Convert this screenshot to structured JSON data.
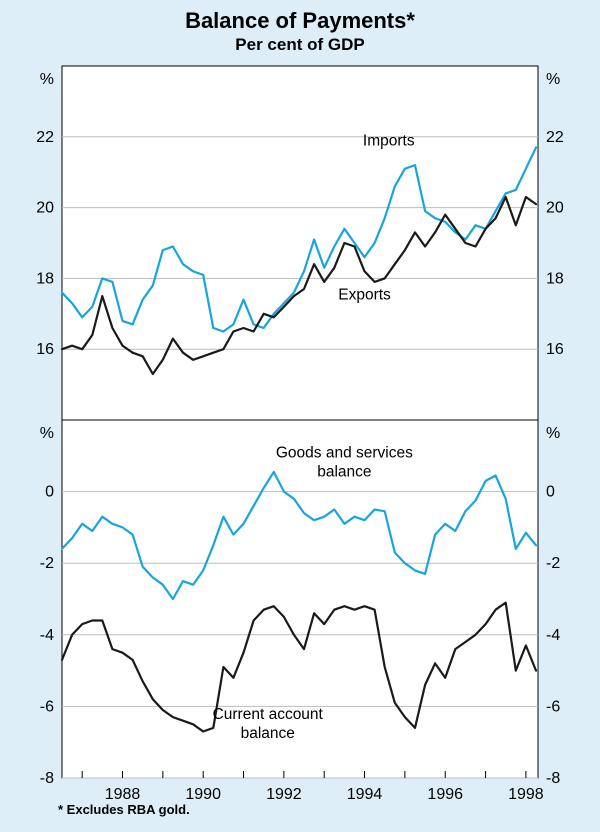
{
  "colors": {
    "background": "#ddeef8",
    "panel": "#ffffff",
    "frame": "#000000",
    "grid": "#bdbdbd",
    "accent_blue": "#18a5de",
    "line_black": "#1a1a1a"
  },
  "chart_data": {
    "type": "line",
    "title": "Balance of Payments*",
    "subtitle": "Per cent of GDP",
    "footnote": "* Excludes RBA gold.",
    "xlim": [
      1986.5,
      1998.3
    ],
    "x_start": 1986.5,
    "x_step": 0.25,
    "x_ticks_labeled": [
      1988,
      1990,
      1992,
      1994,
      1996,
      1998
    ],
    "grid": true,
    "panels": [
      {
        "unit": "%",
        "ylim": [
          14,
          24
        ],
        "gridlines": [
          16,
          18,
          20,
          22
        ],
        "series": [
          {
            "name": "Imports",
            "color": "#18a5de",
            "values": [
              17.6,
              17.3,
              16.9,
              17.2,
              18.0,
              17.9,
              16.8,
              16.7,
              17.4,
              17.8,
              18.8,
              18.9,
              18.4,
              18.2,
              18.1,
              16.6,
              16.5,
              16.7,
              17.4,
              16.7,
              16.6,
              17.0,
              17.3,
              17.6,
              18.2,
              19.1,
              18.3,
              18.9,
              19.4,
              19.0,
              18.6,
              19.0,
              19.7,
              20.6,
              21.1,
              21.2,
              19.9,
              19.7,
              19.6,
              19.3,
              19.1,
              19.5,
              19.4,
              19.9,
              20.4,
              20.5,
              21.1,
              21.7
            ]
          },
          {
            "name": "Exports",
            "color": "#1a1a1a",
            "values": [
              16.0,
              16.1,
              16.0,
              16.4,
              17.5,
              16.6,
              16.1,
              15.9,
              15.8,
              15.3,
              15.7,
              16.3,
              15.9,
              15.7,
              15.8,
              15.9,
              16.0,
              16.5,
              16.6,
              16.5,
              17.0,
              16.9,
              17.2,
              17.5,
              17.7,
              18.4,
              17.9,
              18.3,
              19.0,
              18.9,
              18.2,
              17.9,
              18.0,
              18.4,
              18.8,
              19.3,
              18.9,
              19.3,
              19.8,
              19.4,
              19.0,
              18.9,
              19.4,
              19.7,
              20.3,
              19.5,
              20.3,
              20.1
            ]
          }
        ],
        "annotations": [
          {
            "text": [
              "Imports"
            ],
            "x": 1994.6,
            "y": 21.75
          },
          {
            "text": [
              "Exports"
            ],
            "x": 1994.0,
            "y": 17.4
          }
        ]
      },
      {
        "unit": "%",
        "ylim": [
          -8,
          2
        ],
        "gridlines": [
          -8,
          -6,
          -4,
          -2,
          0
        ],
        "series": [
          {
            "name": "Goods and services balance",
            "color": "#18a5de",
            "values": [
              -1.6,
              -1.3,
              -0.9,
              -1.1,
              -0.7,
              -0.9,
              -1.0,
              -1.2,
              -2.1,
              -2.4,
              -2.6,
              -3.0,
              -2.5,
              -2.6,
              -2.2,
              -1.5,
              -0.7,
              -1.2,
              -0.9,
              -0.4,
              0.1,
              0.55,
              0.0,
              -0.2,
              -0.6,
              -0.8,
              -0.7,
              -0.5,
              -0.9,
              -0.7,
              -0.8,
              -0.5,
              -0.55,
              -1.7,
              -2.0,
              -2.2,
              -2.3,
              -1.2,
              -0.9,
              -1.1,
              -0.55,
              -0.25,
              0.3,
              0.45,
              -0.2,
              -1.6,
              -1.15,
              -1.5
            ]
          },
          {
            "name": "Current account balance",
            "color": "#1a1a1a",
            "values": [
              -4.7,
              -4.0,
              -3.7,
              -3.6,
              -3.6,
              -4.4,
              -4.5,
              -4.7,
              -5.3,
              -5.8,
              -6.1,
              -6.3,
              -6.4,
              -6.5,
              -6.7,
              -6.6,
              -4.9,
              -5.2,
              -4.5,
              -3.6,
              -3.3,
              -3.2,
              -3.5,
              -4.0,
              -4.4,
              -3.4,
              -3.7,
              -3.3,
              -3.2,
              -3.3,
              -3.2,
              -3.3,
              -4.9,
              -5.9,
              -6.3,
              -6.6,
              -5.4,
              -4.8,
              -5.2,
              -4.4,
              -4.2,
              -4.0,
              -3.7,
              -3.3,
              -3.1,
              -5.0,
              -4.3,
              -5.0
            ]
          }
        ],
        "annotations": [
          {
            "text": [
              "Goods and services",
              "balance"
            ],
            "x": 1993.5,
            "y": 0.95
          },
          {
            "text": [
              "Current account",
              "balance"
            ],
            "x": 1991.6,
            "y": -6.35
          }
        ]
      }
    ]
  }
}
